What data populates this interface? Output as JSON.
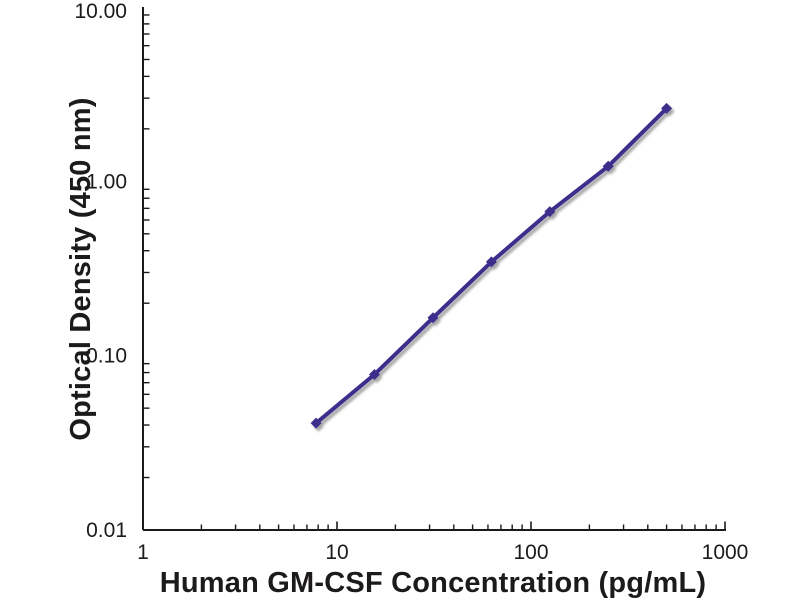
{
  "page": {
    "background": "#ffffff"
  },
  "chart_data": {
    "type": "line",
    "title": "",
    "xlabel": "Human GM-CSF Concentration (pg/mL)",
    "ylabel": "Optical Density (450 nm)",
    "x_scale": "log",
    "y_scale": "log",
    "xlim": [
      1,
      1000
    ],
    "ylim": [
      0.01,
      10
    ],
    "grid": "horizontal-major-only",
    "legend": "none",
    "x_ticks": [
      {
        "value": 1,
        "label": "1"
      },
      {
        "value": 10,
        "label": "10"
      },
      {
        "value": 100,
        "label": "100"
      },
      {
        "value": 1000,
        "label": "1000"
      }
    ],
    "y_ticks": [
      {
        "value": 10,
        "label": "10.00"
      },
      {
        "value": 1,
        "label": "1.00"
      },
      {
        "value": 0.1,
        "label": "0.10"
      },
      {
        "value": 0.01,
        "label": "0.01"
      }
    ],
    "series": [
      {
        "name": "human-gm-csf-standard-curve",
        "marker": "diamond",
        "color": "#3c2d8c",
        "x": [
          7.8,
          15.6,
          31.25,
          62.5,
          125,
          250,
          500
        ],
        "y": [
          0.041,
          0.078,
          0.165,
          0.345,
          0.67,
          1.22,
          2.62
        ]
      }
    ]
  },
  "colors": {
    "series_line": "#3c2d8c",
    "gridline": "#7f7f7f",
    "axis": "#1a1a1a",
    "text": "#1d1a1b",
    "background": "#ffffff"
  }
}
